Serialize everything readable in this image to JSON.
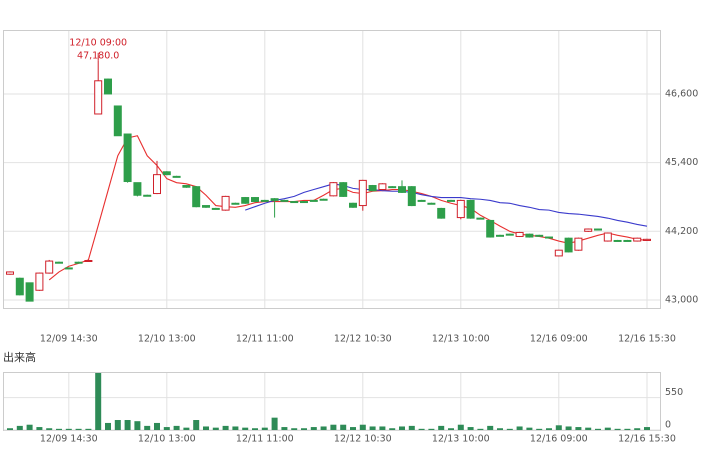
{
  "chart_data": {
    "type": "candlestick",
    "categories": [
      null,
      null,
      null,
      null,
      null,
      null,
      "12/09 14:30",
      null,
      null,
      null,
      null,
      null,
      null,
      null,
      null,
      null,
      "12/10 13:00",
      null,
      null,
      null,
      null,
      null,
      null,
      null,
      null,
      null,
      "12/11 11:00",
      null,
      null,
      null,
      null,
      null,
      null,
      null,
      null,
      null,
      "12/12 10:30",
      null,
      null,
      null,
      null,
      null,
      null,
      null,
      null,
      null,
      "12/13 10:00",
      null,
      null,
      null,
      null,
      null,
      null,
      null,
      null,
      null,
      "12/16 09:00",
      null,
      null,
      null,
      null,
      null,
      null,
      null,
      null,
      "12/16 15:30"
    ],
    "open": [
      43450,
      43380,
      43300,
      43170,
      43470,
      43660,
      43560,
      43660,
      43680,
      46250,
      46860,
      46390,
      45900,
      45050,
      44830,
      44860,
      45240,
      45160,
      45000,
      44980,
      44650,
      44600,
      44570,
      44690,
      44790,
      44790,
      44740,
      44770,
      44740,
      44720,
      44720,
      44740,
      44760,
      44820,
      45050,
      44690,
      44650,
      45000,
      44930,
      44980,
      44980,
      44980,
      44740,
      44690,
      44600,
      44740,
      44440,
      44740,
      44430,
      44390,
      44130,
      44150,
      44110,
      44150,
      44130,
      44100,
      43770,
      44080,
      43870,
      44200,
      44240,
      44030,
      44040,
      44040,
      44030,
      44040
    ],
    "high": [
      43500,
      43390,
      43300,
      43480,
      43700,
      43670,
      43570,
      43670,
      43700,
      47180,
      46870,
      46390,
      45900,
      45050,
      44840,
      45430,
      45250,
      45170,
      45010,
      44990,
      44650,
      44610,
      44820,
      44700,
      44800,
      44800,
      44750,
      44780,
      44750,
      44730,
      44730,
      44750,
      44770,
      45060,
      45060,
      44700,
      45100,
      45010,
      45040,
      44990,
      45090,
      44990,
      44750,
      44700,
      44610,
      44750,
      44750,
      44750,
      44440,
      44400,
      44140,
      44160,
      44190,
      44160,
      44140,
      44110,
      43880,
      44090,
      44090,
      44250,
      44250,
      44180,
      44050,
      44050,
      44090,
      44070
    ],
    "low": [
      43440,
      43080,
      42980,
      43160,
      43460,
      43640,
      43550,
      43650,
      43670,
      46250,
      46600,
      45870,
      45050,
      44810,
      44820,
      44850,
      45180,
      45150,
      44960,
      44620,
      44610,
      44590,
      44560,
      44680,
      44680,
      44710,
      44730,
      44440,
      44730,
      44710,
      44710,
      44730,
      44750,
      44810,
      44800,
      44610,
      44560,
      44900,
      44920,
      44970,
      44870,
      44640,
      44730,
      44680,
      44420,
      44730,
      44410,
      44420,
      44420,
      44090,
      44120,
      44140,
      44100,
      44090,
      44120,
      44090,
      43760,
      43830,
      43860,
      44190,
      44230,
      44020,
      44030,
      44030,
      44020,
      44030
    ],
    "close": [
      43490,
      43090,
      42980,
      43470,
      43680,
      43650,
      43560,
      43660,
      43690,
      46830,
      46600,
      45870,
      45070,
      44830,
      44830,
      45190,
      45190,
      45160,
      44970,
      44630,
      44620,
      44600,
      44810,
      44690,
      44690,
      44720,
      44740,
      44740,
      44740,
      44720,
      44720,
      44740,
      44760,
      45050,
      44810,
      44620,
      45090,
      44910,
      45030,
      44980,
      44880,
      44650,
      44740,
      44690,
      44430,
      44740,
      44740,
      44430,
      44430,
      44100,
      44130,
      44150,
      44180,
      44100,
      44130,
      44100,
      43870,
      43840,
      44080,
      44240,
      44240,
      44170,
      44040,
      44040,
      44080,
      44060
    ],
    "up_color": "#d0202a",
    "down_color": "#2e9e4a",
    "lines": [
      {
        "color": "#e83030",
        "values": [
          null,
          null,
          null,
          null,
          43350,
          43490,
          43590,
          43640,
          43700,
          44300,
          44910,
          45520,
          45830,
          45870,
          45520,
          45350,
          45120,
          45050,
          45030,
          44980,
          44830,
          44650,
          44630,
          44620,
          44650,
          44700,
          44720,
          44720,
          44720,
          44720,
          44740,
          44740,
          44830,
          44930,
          44950,
          44880,
          44860,
          44900,
          44910,
          44930,
          44930,
          44900,
          44860,
          44810,
          44740,
          44690,
          44650,
          44600,
          44480,
          44390,
          44290,
          44200,
          44150,
          44130,
          44110,
          44080,
          44030,
          43990,
          44030,
          44080,
          44130,
          44170,
          44130,
          44100,
          44060,
          44040
        ]
      },
      {
        "color": "#3a3acc",
        "values": [
          null,
          null,
          null,
          null,
          null,
          null,
          null,
          null,
          null,
          null,
          null,
          null,
          null,
          null,
          null,
          null,
          null,
          null,
          null,
          null,
          null,
          null,
          null,
          null,
          44570,
          44630,
          44690,
          44740,
          44770,
          44810,
          44880,
          44930,
          44980,
          45030,
          45000,
          44950,
          44930,
          44930,
          44910,
          44900,
          44900,
          44880,
          44840,
          44810,
          44790,
          44790,
          44790,
          44770,
          44760,
          44740,
          44700,
          44690,
          44650,
          44620,
          44580,
          44570,
          44530,
          44510,
          44500,
          44480,
          44460,
          44430,
          44390,
          44360,
          44320,
          44290
        ]
      }
    ],
    "ylim": [
      42860,
      47700
    ],
    "yticks": [
      {
        "value": 43000,
        "label": "43,000"
      },
      {
        "value": 44200,
        "label": "44,200"
      },
      {
        "value": 45400,
        "label": "45,400"
      },
      {
        "value": 46600,
        "label": "46,600"
      }
    ],
    "grid": true,
    "annotation": {
      "index": 9,
      "time": "12/10 09:00",
      "label": "47,180.0"
    },
    "volume": {
      "title": "出来高",
      "color": "#2e8b57",
      "values": [
        30,
        70,
        90,
        50,
        30,
        20,
        20,
        20,
        20,
        970,
        120,
        170,
        170,
        150,
        70,
        120,
        50,
        70,
        40,
        170,
        60,
        40,
        70,
        60,
        40,
        30,
        40,
        210,
        50,
        30,
        30,
        50,
        60,
        90,
        90,
        50,
        90,
        60,
        60,
        30,
        60,
        70,
        20,
        20,
        70,
        30,
        90,
        50,
        20,
        70,
        30,
        20,
        60,
        40,
        20,
        30,
        80,
        60,
        50,
        40,
        20,
        40,
        20,
        20,
        30,
        50
      ],
      "ylim": [
        0,
        970
      ],
      "yticks": [
        0,
        550
      ]
    }
  }
}
